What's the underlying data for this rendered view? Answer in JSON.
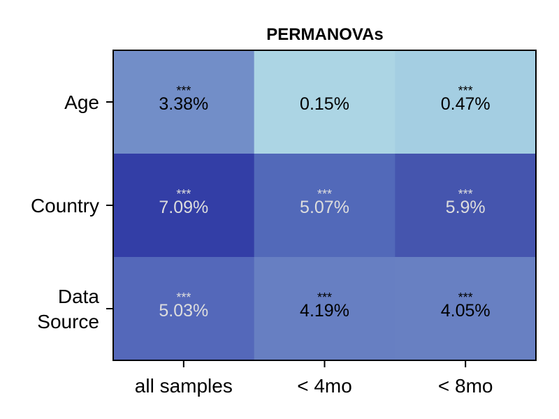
{
  "chart_data": {
    "type": "heatmap",
    "title": "PERMANOVAs",
    "x_categories": [
      "all samples",
      "< 4mo",
      "< 8mo"
    ],
    "y_categories": [
      [
        "Age"
      ],
      [
        "Country"
      ],
      [
        "Data",
        "Source"
      ]
    ],
    "values": [
      [
        3.38,
        0.15,
        0.47
      ],
      [
        7.09,
        5.07,
        5.9
      ],
      [
        5.03,
        4.19,
        4.05
      ]
    ],
    "labels": [
      [
        "3.38%",
        "0.15%",
        "0.47%"
      ],
      [
        "7.09%",
        "5.07%",
        "5.9%"
      ],
      [
        "5.03%",
        "4.19%",
        "4.05%"
      ]
    ],
    "significance": [
      [
        "***",
        "",
        "***"
      ],
      [
        "***",
        "***",
        "***"
      ],
      [
        "***",
        "***",
        "***"
      ]
    ],
    "colors": [
      [
        "#728ec8",
        "#acd5e4",
        "#a4cee2"
      ],
      [
        "#333ea6",
        "#5269b9",
        "#4555ae"
      ],
      [
        "#5468ba",
        "#677fc2",
        "#6880c2"
      ]
    ],
    "text_colors": [
      [
        "#000000",
        "#000000",
        "#000000"
      ],
      [
        "#dddddd",
        "#dddddd",
        "#dddddd"
      ],
      [
        "#dddddd",
        "#000000",
        "#000000"
      ]
    ]
  }
}
